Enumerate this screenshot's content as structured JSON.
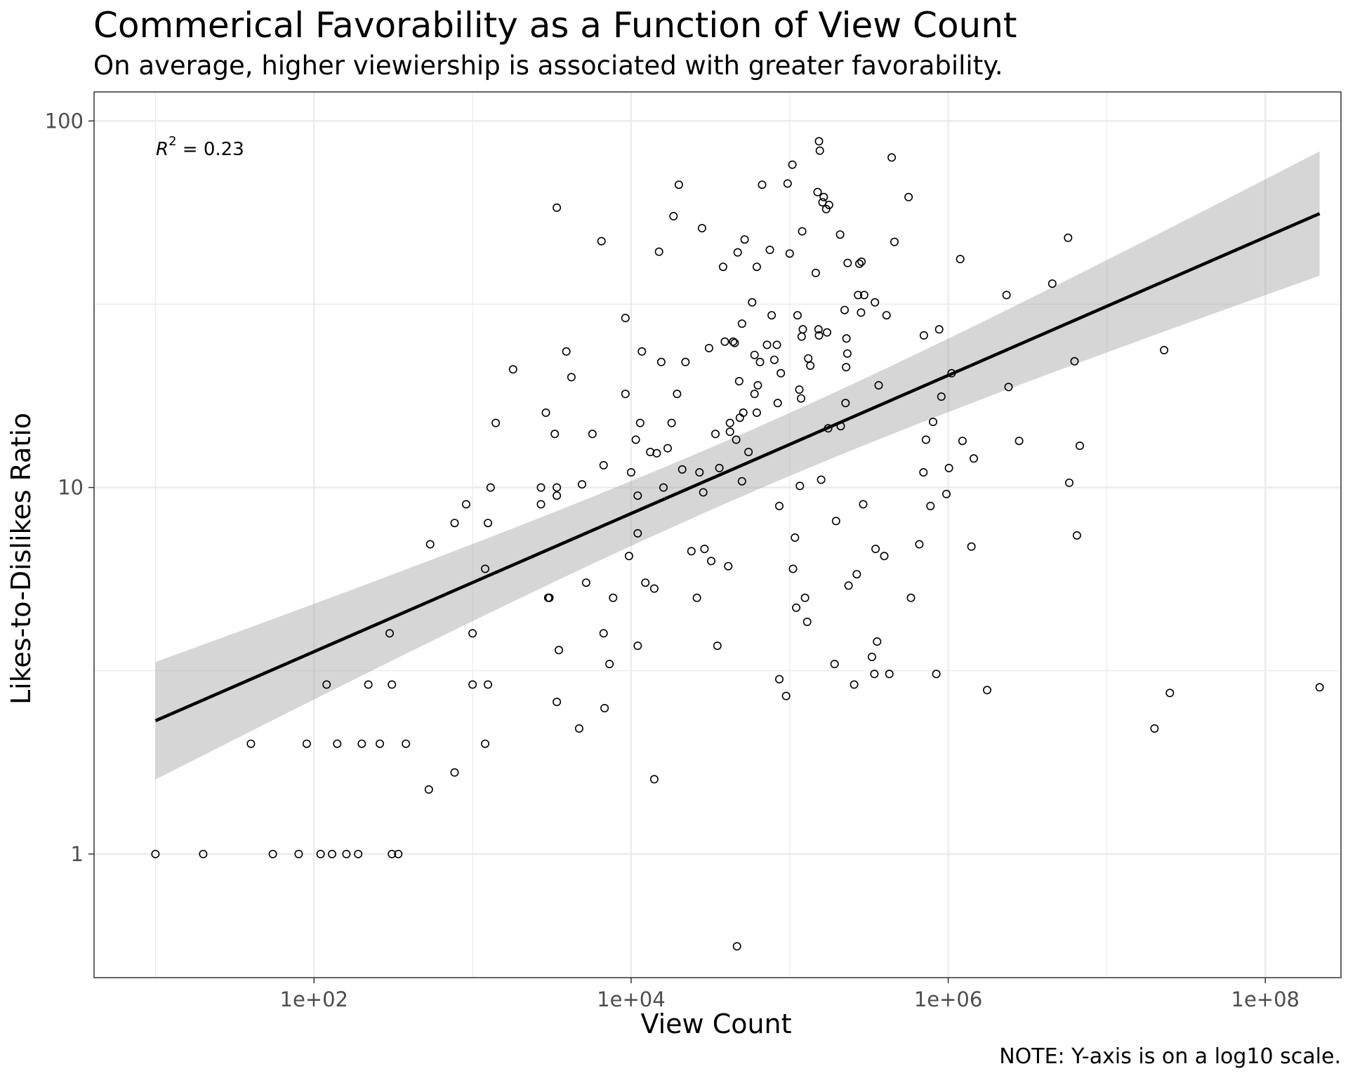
{
  "chart_data": {
    "type": "scatter",
    "title": "Commerical Favorability as a Function of View Count",
    "subtitle": "On average, higher viewiership is associated with greater favorability.",
    "caption": "NOTE: Y-axis is on a log10 scale.",
    "xlabel": "View Count",
    "ylabel": "Likes-to-Dislikes Ratio",
    "x_scale": "log10",
    "y_scale": "log10",
    "xlim": [
      4.1,
      300000000
    ],
    "ylim": [
      0.46,
      120
    ],
    "x_ticks": [
      100,
      10000,
      1000000,
      100000000
    ],
    "x_tick_labels": [
      "1e+02",
      "1e+04",
      "1e+06",
      "1e+08"
    ],
    "y_ticks": [
      1,
      10,
      100
    ],
    "y_tick_labels": [
      "1",
      "10",
      "100"
    ],
    "grid": true,
    "annotation": {
      "r_symbol": "R",
      "exponent": "2",
      "text": " = 0.23"
    },
    "regression": {
      "method": "linear fit (log-log)",
      "line": [
        [
          10,
          2.31
        ],
        [
          220000000,
          55.9
        ]
      ],
      "confidence_band": {
        "x": [
          10,
          220000000
        ],
        "lower": [
          1.6,
          37.8
        ],
        "upper": [
          3.35,
          82.6
        ]
      }
    },
    "series": [
      {
        "points": [
          [
            10,
            1
          ],
          [
            20,
            1
          ],
          [
            55,
            1
          ],
          [
            80,
            1
          ],
          [
            110,
            1
          ],
          [
            130,
            1
          ],
          [
            160,
            1
          ],
          [
            190,
            1
          ],
          [
            310,
            1
          ],
          [
            340,
            1
          ],
          [
            40,
            2
          ],
          [
            90,
            2
          ],
          [
            140,
            2
          ],
          [
            200,
            2
          ],
          [
            260,
            2
          ],
          [
            380,
            2
          ],
          [
            1200,
            2
          ],
          [
            120,
            2.9
          ],
          [
            220,
            2.9
          ],
          [
            310,
            2.9
          ],
          [
            1000,
            2.9
          ],
          [
            1250,
            2.9
          ],
          [
            300,
            4
          ],
          [
            1000,
            4
          ],
          [
            530,
            1.5
          ],
          [
            770,
            1.67
          ],
          [
            540,
            7
          ],
          [
            770,
            8
          ],
          [
            910,
            9
          ],
          [
            1250,
            8
          ],
          [
            1200,
            6
          ],
          [
            1300,
            10
          ],
          [
            1400,
            15
          ],
          [
            1800,
            21
          ],
          [
            2700,
            9
          ],
          [
            2700,
            10
          ],
          [
            2900,
            16
          ],
          [
            3000,
            5
          ],
          [
            3050,
            5
          ],
          [
            3300,
            14
          ],
          [
            3400,
            9.5
          ],
          [
            3400,
            10
          ],
          [
            3500,
            3.6
          ],
          [
            3900,
            23.5
          ],
          [
            4200,
            20
          ],
          [
            4700,
            2.2
          ],
          [
            4900,
            10.2
          ],
          [
            5200,
            5.5
          ],
          [
            5700,
            14
          ],
          [
            3400,
            2.6
          ],
          [
            3400,
            58
          ],
          [
            6500,
            47
          ],
          [
            6700,
            11.5
          ],
          [
            6700,
            4
          ],
          [
            7300,
            3.3
          ],
          [
            7700,
            5
          ],
          [
            6800,
            2.5
          ],
          [
            9200,
            29
          ],
          [
            9200,
            18
          ],
          [
            9700,
            6.5
          ],
          [
            10000,
            11
          ],
          [
            10700,
            13.5
          ],
          [
            11000,
            9.5
          ],
          [
            11400,
            15
          ],
          [
            11000,
            3.7
          ],
          [
            11000,
            7.5
          ],
          [
            11700,
            23.5
          ],
          [
            12300,
            5.5
          ],
          [
            13200,
            12.5
          ],
          [
            14000,
            1.6
          ],
          [
            14000,
            5.3
          ],
          [
            14500,
            12.4
          ],
          [
            15000,
            44
          ],
          [
            15500,
            22
          ],
          [
            16000,
            10
          ],
          [
            17000,
            12.8
          ],
          [
            18000,
            15
          ],
          [
            18500,
            55
          ],
          [
            19500,
            18
          ],
          [
            20000,
            67
          ],
          [
            21000,
            11.2
          ],
          [
            22000,
            22
          ],
          [
            24000,
            6.7
          ],
          [
            26000,
            5
          ],
          [
            27000,
            11
          ],
          [
            28000,
            51
          ],
          [
            28500,
            9.7
          ],
          [
            29000,
            6.8
          ],
          [
            31000,
            24
          ],
          [
            32000,
            6.3
          ],
          [
            34000,
            14
          ],
          [
            35000,
            3.7
          ],
          [
            36000,
            11.3
          ],
          [
            38000,
            40
          ],
          [
            39000,
            25
          ],
          [
            41000,
            6.1
          ],
          [
            42000,
            14.2
          ],
          [
            42000,
            15
          ],
          [
            44000,
            25
          ],
          [
            45000,
            24.8
          ],
          [
            46000,
            13.5
          ],
          [
            46500,
            0.56
          ],
          [
            47000,
            43.8
          ],
          [
            48000,
            19.5
          ],
          [
            48500,
            15.5
          ],
          [
            50000,
            28
          ],
          [
            50000,
            10.4
          ],
          [
            51000,
            16
          ],
          [
            52000,
            47.5
          ],
          [
            55000,
            12.5
          ],
          [
            58000,
            32
          ],
          [
            60000,
            23
          ],
          [
            60000,
            18
          ],
          [
            62000,
            16
          ],
          [
            62000,
            40
          ],
          [
            63000,
            19
          ],
          [
            65000,
            22
          ],
          [
            67000,
            67
          ],
          [
            72000,
            24.5
          ],
          [
            75000,
            44.5
          ],
          [
            77000,
            29.5
          ],
          [
            80000,
            22.3
          ],
          [
            83000,
            24.5
          ],
          [
            84000,
            17
          ],
          [
            86000,
            3
          ],
          [
            86000,
            8.9
          ],
          [
            88000,
            20.5
          ],
          [
            95000,
            2.7
          ],
          [
            97000,
            67.5
          ],
          [
            100000,
            43.5
          ],
          [
            104000,
            76
          ],
          [
            105000,
            6
          ],
          [
            108000,
            7.3
          ],
          [
            110000,
            4.7
          ],
          [
            112000,
            29.5
          ],
          [
            115000,
            18.5
          ],
          [
            116000,
            10.1
          ],
          [
            118000,
            17.5
          ],
          [
            119000,
            25.8
          ],
          [
            120000,
            50
          ],
          [
            121000,
            27
          ],
          [
            125000,
            5
          ],
          [
            129000,
            4.3
          ],
          [
            131000,
            22.5
          ],
          [
            135000,
            21.5
          ],
          [
            146000,
            38.5
          ],
          [
            150000,
            64
          ],
          [
            152000,
            27
          ],
          [
            153000,
            88
          ],
          [
            153000,
            26
          ],
          [
            155000,
            83
          ],
          [
            158000,
            10.5
          ],
          [
            161000,
            60
          ],
          [
            164000,
            62
          ],
          [
            170000,
            57.5
          ],
          [
            172000,
            26.5
          ],
          [
            175000,
            14.5
          ],
          [
            177000,
            59
          ],
          [
            192000,
            3.3
          ],
          [
            196000,
            8.1
          ],
          [
            208000,
            49
          ],
          [
            210000,
            14.7
          ],
          [
            222000,
            30.5
          ],
          [
            225000,
            17
          ],
          [
            227000,
            21.3
          ],
          [
            228000,
            25.5
          ],
          [
            231000,
            23.2
          ],
          [
            232000,
            41
          ],
          [
            235000,
            5.4
          ],
          [
            255000,
            2.9
          ],
          [
            265000,
            5.8
          ],
          [
            270000,
            33.5
          ],
          [
            275000,
            40.8
          ],
          [
            282000,
            30
          ],
          [
            284000,
            41.3
          ],
          [
            291000,
            9
          ],
          [
            295000,
            33.5
          ],
          [
            330000,
            3.45
          ],
          [
            342000,
            3.1
          ],
          [
            345000,
            32
          ],
          [
            348000,
            6.8
          ],
          [
            356000,
            3.8
          ],
          [
            364000,
            19
          ],
          [
            395000,
            6.5
          ],
          [
            408000,
            29.5
          ],
          [
            425000,
            3.1
          ],
          [
            440000,
            79.5
          ],
          [
            458000,
            46.8
          ],
          [
            562000,
            62
          ],
          [
            582000,
            5
          ],
          [
            657000,
            7
          ],
          [
            698000,
            11
          ],
          [
            702000,
            26
          ],
          [
            724000,
            13.5
          ],
          [
            773000,
            8.9
          ],
          [
            802000,
            15.1
          ],
          [
            841000,
            3.1
          ],
          [
            877000,
            27
          ],
          [
            905000,
            17.7
          ],
          [
            974000,
            9.6
          ],
          [
            1010000,
            11.3
          ],
          [
            1050000,
            20.5
          ],
          [
            1190000,
            42
          ],
          [
            1230000,
            13.4
          ],
          [
            1400000,
            6.9
          ],
          [
            1450000,
            12
          ],
          [
            1760000,
            2.8
          ],
          [
            2330000,
            33.5
          ],
          [
            2400000,
            18.8
          ],
          [
            2800000,
            13.4
          ],
          [
            4530000,
            36
          ],
          [
            5700000,
            48
          ],
          [
            5800000,
            10.3
          ],
          [
            6260000,
            22.1
          ],
          [
            6480000,
            7.4
          ],
          [
            6760000,
            13
          ],
          [
            20000000,
            2.2
          ],
          [
            23000000,
            23.7
          ],
          [
            25000000,
            2.75
          ],
          [
            220000000,
            2.85
          ]
        ]
      }
    ]
  }
}
